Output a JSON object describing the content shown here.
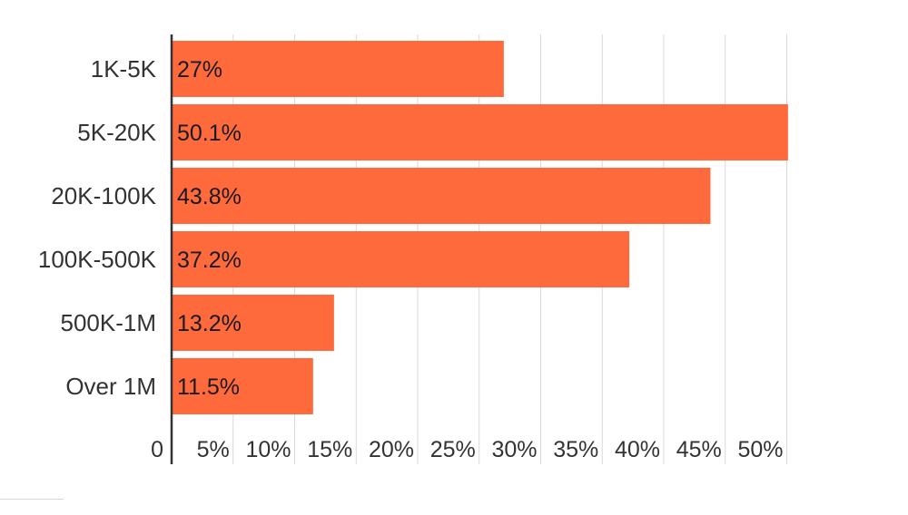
{
  "colors": {
    "bar": "#ff6a3d",
    "grid": "#d9d9d9",
    "axis": "#333333",
    "text": "#333333"
  },
  "chart_data": {
    "type": "bar",
    "orientation": "horizontal",
    "categories": [
      "1K-5K",
      "5K-20K",
      "20K-100K",
      "100K-500K",
      "500K-1M",
      "Over 1M"
    ],
    "values": [
      27,
      50.1,
      43.8,
      37.2,
      13.2,
      11.5
    ],
    "data_labels": [
      "27%",
      "50.1%",
      "43.8%",
      "37.2%",
      "13.2%",
      "11.5%"
    ],
    "x_ticks": [
      0,
      5,
      10,
      15,
      20,
      25,
      30,
      35,
      40,
      45,
      50
    ],
    "x_tick_labels": [
      "0",
      "5%",
      "10%",
      "15%",
      "20%",
      "25%",
      "30%",
      "35%",
      "40%",
      "45%",
      "50%"
    ],
    "xlim": [
      0,
      50
    ],
    "grid": true,
    "legend": "none",
    "title": "",
    "xlabel": "",
    "ylabel": ""
  }
}
